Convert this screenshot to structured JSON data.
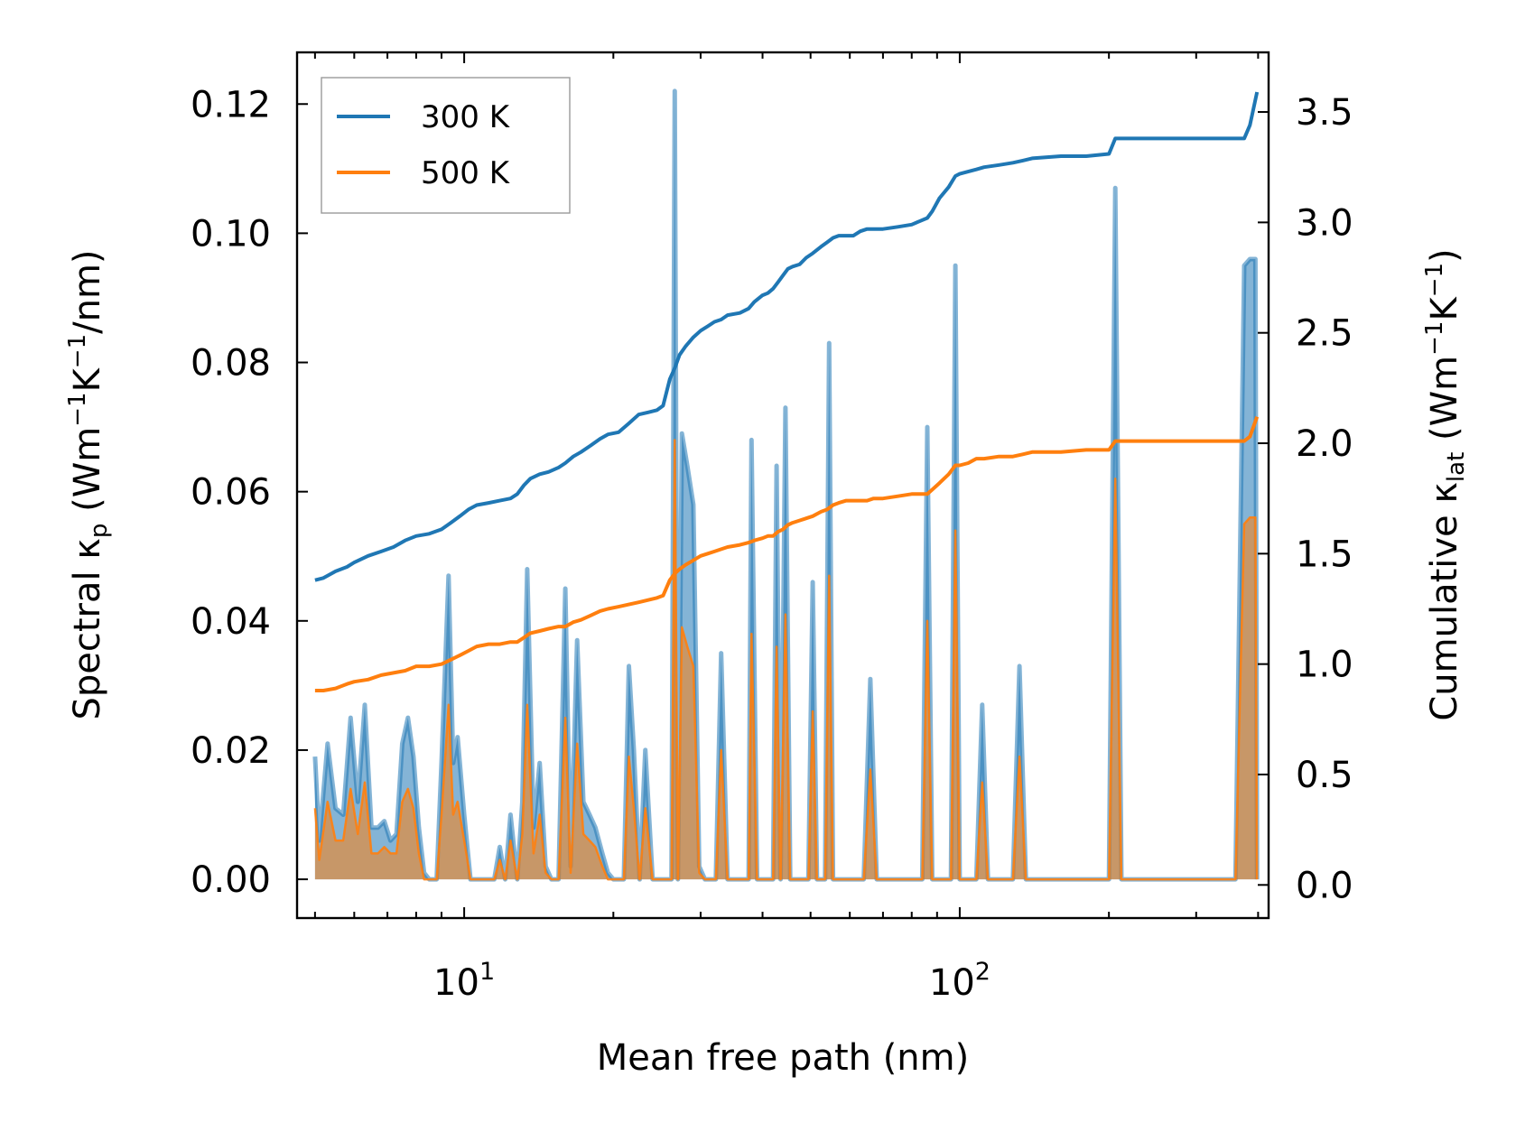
{
  "chart_data": {
    "type": "area",
    "title": "",
    "xlabel": "Mean free path (nm)",
    "xscale": "log",
    "xlim": [
      4.6,
      420
    ],
    "x_ticks": [
      {
        "value": 10,
        "base": "10",
        "exp": "1"
      },
      {
        "value": 100,
        "base": "10",
        "exp": "2"
      }
    ],
    "ylabel_left": {
      "main": "Spectral κ",
      "sub": "p",
      "unit_open": " (Wm",
      "sup1": "−1",
      "mid": "K",
      "sup2": "−1",
      "tail": "/nm)"
    },
    "ylabel_right": {
      "main": "Cumulative κ",
      "sub": "lat",
      "unit_open": " (Wm",
      "sup1": "−1",
      "mid": "K",
      "sup2": "−1",
      "tail": ")"
    },
    "ylim_left": [
      -0.006,
      0.128
    ],
    "ylim_right": [
      -0.15,
      3.77
    ],
    "yticks_left": [
      "0.00",
      "0.02",
      "0.04",
      "0.06",
      "0.08",
      "0.10",
      "0.12"
    ],
    "yticks_right": [
      "0.0",
      "0.5",
      "1.0",
      "1.5",
      "2.0",
      "2.5",
      "3.0",
      "3.5"
    ],
    "legend": {
      "position": "top-left",
      "entries": [
        {
          "label": "300 K",
          "color": "#1f77b4"
        },
        {
          "label": "500 K",
          "color": "#ff7f0e"
        }
      ]
    },
    "series": [
      {
        "name": "300 K spectral",
        "color": "#1f77b4",
        "axis": "left",
        "kind": "spectral",
        "x": [
          5.0,
          5.1,
          5.3,
          5.5,
          5.7,
          5.9,
          6.1,
          6.3,
          6.5,
          6.7,
          6.9,
          7.1,
          7.3,
          7.5,
          7.7,
          7.9,
          8.1,
          8.3,
          8.5,
          8.8,
          9.0,
          9.3,
          9.5,
          9.7,
          10.0,
          10.3,
          10.6,
          11.0,
          11.5,
          11.8,
          12.1,
          12.4,
          12.8,
          13.1,
          13.4,
          13.8,
          14.2,
          14.6,
          15.0,
          15.5,
          16.0,
          16.4,
          16.9,
          17.4,
          17.9,
          18.4,
          19.0,
          19.5,
          20.0,
          20.5,
          21.0,
          21.5,
          22.0,
          22.6,
          23.2,
          24.0,
          24.8,
          25.5,
          26.2,
          26.6,
          27.0,
          27.5,
          28.2,
          29.0,
          29.8,
          30.6,
          31.4,
          32.2,
          33.0,
          34.0,
          35.0,
          36.0,
          37.0,
          37.5,
          38.0,
          39.0,
          40.0,
          41.0,
          42.0,
          42.7,
          43.5,
          44.5,
          45.5,
          46.5,
          47.5,
          48.5,
          49.5,
          50.5,
          51.5,
          52.5,
          53.5,
          54.5,
          55.5,
          56.5,
          57.5,
          58.5,
          60.0,
          62.0,
          64.0,
          66.0,
          68.0,
          70.0,
          75.0,
          80.0,
          84.0,
          86.0,
          88.0,
          92.0,
          96.0,
          98.0,
          100.0,
          104.0,
          108.0,
          111.0,
          114.0,
          120.0,
          128.0,
          132.0,
          136.0,
          140.0,
          160.0,
          180.0,
          200.0,
          206.0,
          212.0,
          218.0,
          250.0,
          300.0,
          360.0,
          375.0,
          385.0,
          395.0,
          398.0
        ],
        "values": [
          0.019,
          0.006,
          0.021,
          0.011,
          0.01,
          0.025,
          0.012,
          0.027,
          0.008,
          0.008,
          0.009,
          0.006,
          0.007,
          0.021,
          0.025,
          0.019,
          0.008,
          0.001,
          0.0,
          0.0,
          0.018,
          0.047,
          0.018,
          0.022,
          0.01,
          0.0,
          0.0,
          0.0,
          0.0,
          0.005,
          0.0,
          0.01,
          0.0,
          0.012,
          0.048,
          0.008,
          0.018,
          0.002,
          0.0,
          0.0,
          0.045,
          0.002,
          0.037,
          0.012,
          0.01,
          0.008,
          0.004,
          0.001,
          0.0,
          0.0,
          0.0,
          0.033,
          0.02,
          0.0,
          0.02,
          0.0,
          0.0,
          0.0,
          0.0,
          0.122,
          0.0,
          0.069,
          0.064,
          0.058,
          0.002,
          0.0,
          0.0,
          0.0,
          0.035,
          0.0,
          0.0,
          0.0,
          0.0,
          0.0,
          0.068,
          0.0,
          0.0,
          0.0,
          0.0,
          0.064,
          0.0,
          0.073,
          0.0,
          0.0,
          0.0,
          0.0,
          0.0,
          0.046,
          0.0,
          0.0,
          0.0,
          0.083,
          0.0,
          0.0,
          0.0,
          0.0,
          0.0,
          0.0,
          0.0,
          0.031,
          0.0,
          0.0,
          0.0,
          0.0,
          0.0,
          0.07,
          0.0,
          0.0,
          0.0,
          0.095,
          0.0,
          0.0,
          0.0,
          0.027,
          0.0,
          0.0,
          0.0,
          0.033,
          0.0,
          0.0,
          0.0,
          0.0,
          0.0,
          0.107,
          0.0,
          0.0,
          0.0,
          0.0,
          0.0,
          0.095,
          0.096,
          0.096,
          0.0
        ]
      },
      {
        "name": "500 K spectral",
        "color": "#ff7f0e",
        "axis": "left",
        "kind": "spectral",
        "x": [
          5.0,
          5.1,
          5.3,
          5.5,
          5.7,
          5.9,
          6.1,
          6.3,
          6.5,
          6.7,
          6.9,
          7.1,
          7.3,
          7.5,
          7.7,
          7.9,
          8.1,
          8.3,
          8.5,
          8.8,
          9.0,
          9.3,
          9.5,
          9.7,
          10.0,
          10.3,
          10.6,
          11.0,
          11.5,
          11.8,
          12.1,
          12.4,
          12.8,
          13.1,
          13.4,
          13.8,
          14.2,
          14.6,
          15.0,
          15.5,
          16.0,
          16.4,
          16.9,
          17.4,
          17.9,
          18.4,
          19.0,
          19.5,
          20.0,
          20.5,
          21.0,
          21.5,
          22.0,
          22.6,
          23.2,
          24.0,
          24.8,
          25.5,
          26.2,
          26.6,
          27.0,
          27.5,
          28.2,
          29.0,
          29.8,
          30.6,
          31.4,
          32.2,
          33.0,
          34.0,
          35.0,
          36.0,
          37.0,
          37.5,
          38.0,
          39.0,
          40.0,
          41.0,
          42.0,
          42.7,
          43.5,
          44.5,
          45.5,
          46.5,
          47.5,
          48.5,
          49.5,
          50.5,
          51.5,
          52.5,
          53.5,
          54.5,
          55.5,
          56.5,
          57.5,
          58.5,
          60.0,
          62.0,
          64.0,
          66.0,
          68.0,
          70.0,
          75.0,
          80.0,
          84.0,
          86.0,
          88.0,
          92.0,
          96.0,
          98.0,
          100.0,
          104.0,
          108.0,
          111.0,
          114.0,
          120.0,
          128.0,
          132.0,
          136.0,
          140.0,
          160.0,
          180.0,
          200.0,
          206.0,
          212.0,
          218.0,
          250.0,
          300.0,
          360.0,
          375.0,
          385.0,
          395.0,
          398.0
        ],
        "values": [
          0.011,
          0.003,
          0.012,
          0.006,
          0.006,
          0.014,
          0.007,
          0.015,
          0.004,
          0.004,
          0.005,
          0.004,
          0.004,
          0.012,
          0.014,
          0.011,
          0.004,
          0.0,
          0.0,
          0.0,
          0.01,
          0.027,
          0.01,
          0.012,
          0.006,
          0.0,
          0.0,
          0.0,
          0.0,
          0.003,
          0.0,
          0.006,
          0.0,
          0.007,
          0.027,
          0.004,
          0.01,
          0.001,
          0.0,
          0.0,
          0.025,
          0.001,
          0.021,
          0.007,
          0.006,
          0.005,
          0.002,
          0.0,
          0.0,
          0.0,
          0.0,
          0.019,
          0.011,
          0.0,
          0.011,
          0.0,
          0.0,
          0.0,
          0.0,
          0.068,
          0.0,
          0.039,
          0.036,
          0.033,
          0.001,
          0.0,
          0.0,
          0.0,
          0.02,
          0.0,
          0.0,
          0.0,
          0.0,
          0.0,
          0.038,
          0.0,
          0.0,
          0.0,
          0.0,
          0.036,
          0.0,
          0.041,
          0.0,
          0.0,
          0.0,
          0.0,
          0.0,
          0.026,
          0.0,
          0.0,
          0.0,
          0.047,
          0.0,
          0.0,
          0.0,
          0.0,
          0.0,
          0.0,
          0.0,
          0.017,
          0.0,
          0.0,
          0.0,
          0.0,
          0.0,
          0.04,
          0.0,
          0.0,
          0.0,
          0.054,
          0.0,
          0.0,
          0.0,
          0.015,
          0.0,
          0.0,
          0.0,
          0.019,
          0.0,
          0.0,
          0.0,
          0.0,
          0.0,
          0.062,
          0.0,
          0.0,
          0.0,
          0.0,
          0.0,
          0.055,
          0.056,
          0.056,
          0.0
        ]
      },
      {
        "name": "300 K cumulative",
        "color": "#1f77b4",
        "axis": "right",
        "kind": "cumulative",
        "x": [
          5.0,
          5.2,
          5.5,
          5.8,
          6.0,
          6.4,
          6.8,
          7.2,
          7.6,
          8.0,
          8.5,
          9.0,
          9.4,
          9.8,
          10.2,
          10.6,
          11.2,
          11.8,
          12.4,
          12.8,
          13.2,
          13.6,
          14.2,
          14.8,
          15.5,
          16.0,
          16.6,
          17.2,
          18.0,
          18.8,
          19.5,
          20.5,
          21.5,
          22.5,
          23.5,
          24.5,
          25.2,
          26.0,
          26.6,
          27.2,
          28.0,
          29.0,
          30.0,
          31.0,
          32.0,
          33.0,
          34.0,
          36.0,
          37.5,
          38.5,
          40.0,
          41.0,
          42.0,
          43.0,
          44.0,
          45.0,
          46.0,
          47.5,
          49.0,
          50.5,
          52.5,
          54.0,
          55.5,
          57.0,
          59.0,
          61.0,
          63.0,
          65.0,
          67.0,
          70.0,
          75.0,
          80.0,
          86.0,
          88.0,
          91.0,
          95.0,
          98.0,
          100.0,
          104.0,
          108.0,
          112.0,
          120.0,
          128.0,
          134.0,
          140.0,
          160.0,
          180.0,
          200.0,
          206.0,
          212.0,
          250.0,
          300.0,
          360.0,
          375.0,
          385.0,
          398.0
        ],
        "values": [
          1.38,
          1.39,
          1.42,
          1.44,
          1.46,
          1.49,
          1.51,
          1.53,
          1.56,
          1.58,
          1.59,
          1.61,
          1.64,
          1.67,
          1.7,
          1.72,
          1.73,
          1.74,
          1.75,
          1.77,
          1.81,
          1.84,
          1.86,
          1.87,
          1.89,
          1.91,
          1.94,
          1.96,
          1.99,
          2.02,
          2.04,
          2.05,
          2.09,
          2.13,
          2.14,
          2.15,
          2.17,
          2.29,
          2.34,
          2.4,
          2.44,
          2.48,
          2.51,
          2.53,
          2.55,
          2.56,
          2.58,
          2.59,
          2.61,
          2.64,
          2.67,
          2.68,
          2.7,
          2.73,
          2.76,
          2.79,
          2.8,
          2.81,
          2.84,
          2.86,
          2.89,
          2.91,
          2.93,
          2.94,
          2.94,
          2.94,
          2.96,
          2.97,
          2.97,
          2.97,
          2.98,
          2.99,
          3.02,
          3.05,
          3.11,
          3.16,
          3.21,
          3.22,
          3.23,
          3.24,
          3.25,
          3.26,
          3.27,
          3.28,
          3.29,
          3.3,
          3.3,
          3.31,
          3.38,
          3.38,
          3.38,
          3.38,
          3.38,
          3.38,
          3.44,
          3.59
        ]
      },
      {
        "name": "500 K cumulative",
        "color": "#ff7f0e",
        "axis": "right",
        "kind": "cumulative",
        "x": [
          5.0,
          5.2,
          5.5,
          5.8,
          6.0,
          6.4,
          6.8,
          7.2,
          7.6,
          8.0,
          8.5,
          9.0,
          9.4,
          9.8,
          10.2,
          10.6,
          11.2,
          11.8,
          12.4,
          12.8,
          13.2,
          13.6,
          14.2,
          14.8,
          15.5,
          16.0,
          16.6,
          17.2,
          18.0,
          18.8,
          19.5,
          20.5,
          21.5,
          22.5,
          23.5,
          24.5,
          25.2,
          26.0,
          26.6,
          27.2,
          28.0,
          29.0,
          30.0,
          31.0,
          32.0,
          33.0,
          34.0,
          36.0,
          37.5,
          38.5,
          40.0,
          41.0,
          42.0,
          43.0,
          44.0,
          45.0,
          46.0,
          47.5,
          49.0,
          50.5,
          52.5,
          54.0,
          55.5,
          57.0,
          59.0,
          61.0,
          63.0,
          65.0,
          67.0,
          70.0,
          75.0,
          80.0,
          86.0,
          88.0,
          91.0,
          95.0,
          98.0,
          100.0,
          104.0,
          108.0,
          112.0,
          120.0,
          128.0,
          134.0,
          140.0,
          160.0,
          180.0,
          200.0,
          206.0,
          212.0,
          250.0,
          300.0,
          360.0,
          375.0,
          385.0,
          398.0
        ],
        "values": [
          0.88,
          0.88,
          0.89,
          0.91,
          0.92,
          0.93,
          0.95,
          0.96,
          0.97,
          0.99,
          0.99,
          1.0,
          1.02,
          1.04,
          1.06,
          1.08,
          1.09,
          1.09,
          1.1,
          1.1,
          1.12,
          1.14,
          1.15,
          1.16,
          1.17,
          1.17,
          1.19,
          1.2,
          1.22,
          1.24,
          1.25,
          1.26,
          1.27,
          1.28,
          1.29,
          1.3,
          1.31,
          1.38,
          1.41,
          1.43,
          1.45,
          1.47,
          1.49,
          1.5,
          1.51,
          1.52,
          1.53,
          1.54,
          1.55,
          1.56,
          1.57,
          1.58,
          1.58,
          1.6,
          1.61,
          1.63,
          1.64,
          1.65,
          1.66,
          1.67,
          1.69,
          1.7,
          1.72,
          1.73,
          1.74,
          1.74,
          1.74,
          1.74,
          1.75,
          1.75,
          1.76,
          1.77,
          1.77,
          1.79,
          1.82,
          1.86,
          1.9,
          1.9,
          1.91,
          1.93,
          1.93,
          1.94,
          1.94,
          1.95,
          1.96,
          1.96,
          1.97,
          1.97,
          2.01,
          2.01,
          2.01,
          2.01,
          2.01,
          2.01,
          2.03,
          2.12
        ]
      }
    ]
  }
}
